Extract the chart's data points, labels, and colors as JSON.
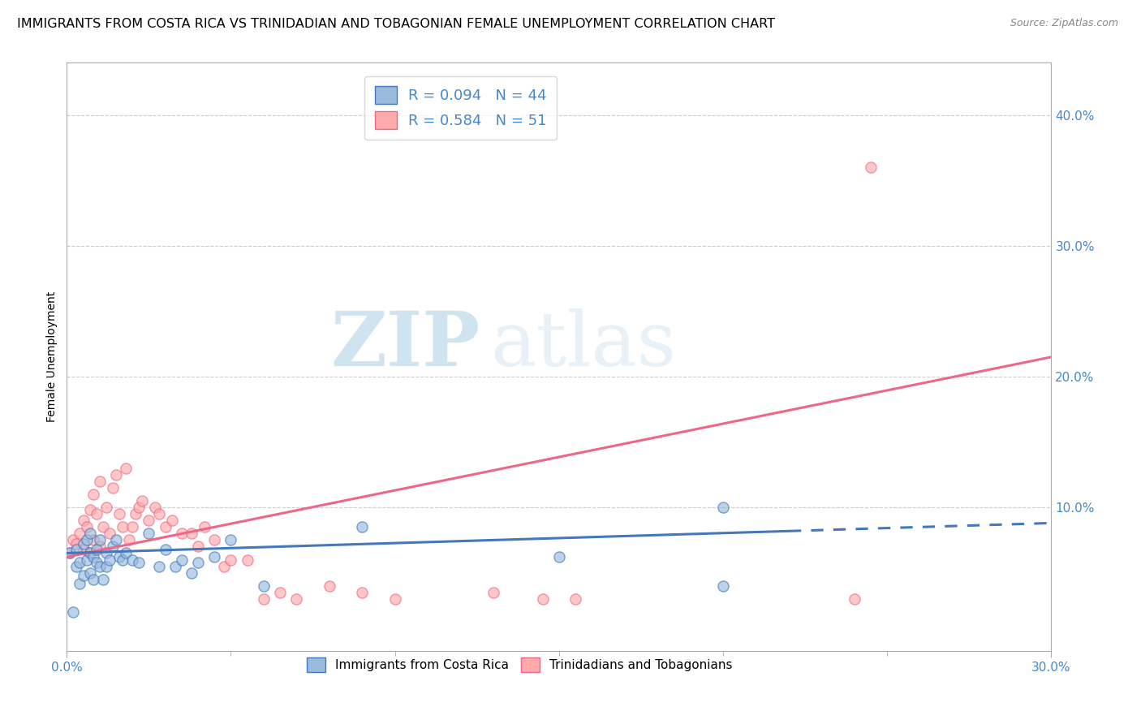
{
  "title": "IMMIGRANTS FROM COSTA RICA VS TRINIDADIAN AND TOBAGONIAN FEMALE UNEMPLOYMENT CORRELATION CHART",
  "source": "Source: ZipAtlas.com",
  "ylabel": "Female Unemployment",
  "legend_label1": "R = 0.094   N = 44",
  "legend_label2": "R = 0.584   N = 51",
  "legend_footer1": "Immigrants from Costa Rica",
  "legend_footer2": "Trinidadians and Tobagonians",
  "color_blue": "#99BBDD",
  "color_pink": "#FFAAAA",
  "color_blue_dark": "#4477BB",
  "color_pink_dark": "#EE6688",
  "color_text_blue": "#4488CC",
  "background_color": "#FFFFFF",
  "grid_color": "#CCCCCC",
  "watermark_zip": "ZIP",
  "watermark_atlas": "atlas",
  "xlim": [
    0.0,
    0.3
  ],
  "ylim": [
    -0.01,
    0.44
  ],
  "blue_scatter_x": [
    0.001,
    0.002,
    0.003,
    0.003,
    0.004,
    0.004,
    0.005,
    0.005,
    0.006,
    0.006,
    0.007,
    0.007,
    0.007,
    0.008,
    0.008,
    0.009,
    0.009,
    0.01,
    0.01,
    0.011,
    0.012,
    0.012,
    0.013,
    0.014,
    0.015,
    0.016,
    0.017,
    0.018,
    0.02,
    0.022,
    0.025,
    0.028,
    0.03,
    0.033,
    0.035,
    0.038,
    0.04,
    0.045,
    0.05,
    0.06,
    0.09,
    0.15,
    0.2,
    0.2
  ],
  "blue_scatter_y": [
    0.065,
    0.02,
    0.068,
    0.055,
    0.058,
    0.042,
    0.072,
    0.048,
    0.06,
    0.075,
    0.065,
    0.08,
    0.05,
    0.062,
    0.045,
    0.068,
    0.058,
    0.055,
    0.075,
    0.045,
    0.065,
    0.055,
    0.06,
    0.07,
    0.075,
    0.062,
    0.06,
    0.065,
    0.06,
    0.058,
    0.08,
    0.055,
    0.068,
    0.055,
    0.06,
    0.05,
    0.058,
    0.062,
    0.075,
    0.04,
    0.085,
    0.062,
    0.04,
    0.1
  ],
  "pink_scatter_x": [
    0.001,
    0.002,
    0.003,
    0.004,
    0.005,
    0.005,
    0.006,
    0.007,
    0.007,
    0.008,
    0.008,
    0.009,
    0.01,
    0.01,
    0.011,
    0.012,
    0.013,
    0.014,
    0.015,
    0.016,
    0.017,
    0.018,
    0.019,
    0.02,
    0.021,
    0.022,
    0.023,
    0.025,
    0.027,
    0.028,
    0.03,
    0.032,
    0.035,
    0.038,
    0.04,
    0.042,
    0.045,
    0.048,
    0.05,
    0.055,
    0.06,
    0.065,
    0.07,
    0.08,
    0.09,
    0.1,
    0.13,
    0.145,
    0.155,
    0.24,
    0.245
  ],
  "pink_scatter_y": [
    0.065,
    0.075,
    0.072,
    0.08,
    0.068,
    0.09,
    0.085,
    0.098,
    0.065,
    0.11,
    0.075,
    0.095,
    0.12,
    0.07,
    0.085,
    0.1,
    0.08,
    0.115,
    0.125,
    0.095,
    0.085,
    0.13,
    0.075,
    0.085,
    0.095,
    0.1,
    0.105,
    0.09,
    0.1,
    0.095,
    0.085,
    0.09,
    0.08,
    0.08,
    0.07,
    0.085,
    0.075,
    0.055,
    0.06,
    0.06,
    0.03,
    0.035,
    0.03,
    0.04,
    0.035,
    0.03,
    0.035,
    0.03,
    0.03,
    0.03,
    0.36
  ],
  "blue_line_x": [
    0.0,
    0.3
  ],
  "blue_line_y": [
    0.065,
    0.088
  ],
  "pink_line_x": [
    0.0,
    0.3
  ],
  "pink_line_y": [
    0.062,
    0.215
  ],
  "title_fontsize": 11.5,
  "axis_fontsize": 11,
  "legend_fontsize": 13,
  "scatter_size": 90
}
